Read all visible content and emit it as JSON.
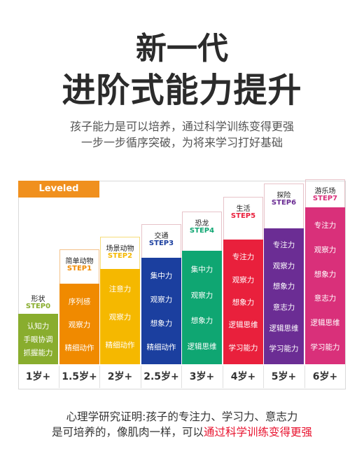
{
  "title_line1": "新一代",
  "title_line2": "进阶式能力提升",
  "subtitle_line1": "孩子能力是可以培养，通过科学训练变得更强",
  "subtitle_line2": "一步一步循序突破，为将来学习打好基础",
  "brand": "Leveled Puzzles",
  "steps": [
    {
      "name": "形状",
      "step": "STEP0",
      "age": "1岁+",
      "color": "#89ad2e",
      "items": [
        "认知力",
        "手眼协调",
        "抓握能力"
      ]
    },
    {
      "name": "简单动物",
      "step": "STEP1",
      "age": "1.5岁+",
      "color": "#f08a00",
      "items": [
        "序列感",
        "观察力",
        "精细动作"
      ]
    },
    {
      "name": "场景动物",
      "step": "STEP2",
      "age": "2岁+",
      "color": "#f5b800",
      "items": [
        "注意力",
        "观察力",
        "精细动作"
      ]
    },
    {
      "name": "交通",
      "step": "STEP3",
      "age": "2.5岁+",
      "color": "#1b3f9f",
      "items": [
        "集中力",
        "观察力",
        "想象力",
        "精细动作"
      ]
    },
    {
      "name": "恐龙",
      "step": "STEP4",
      "age": "3岁+",
      "color": "#0fa672",
      "items": [
        "集中力",
        "观察力",
        "想象力",
        "逻辑思维"
      ]
    },
    {
      "name": "生活",
      "step": "STEP5",
      "age": "4岁+",
      "color": "#e9203c",
      "items": [
        "专注力",
        "观察力",
        "想象力",
        "逻辑思维",
        "学习能力"
      ]
    },
    {
      "name": "探险",
      "step": "STEP6",
      "age": "5岁+",
      "color": "#6b2d94",
      "items": [
        "专注力",
        "观察力",
        "想象力",
        "意志力",
        "逻辑思维",
        "学习能力"
      ]
    },
    {
      "name": "游乐场",
      "step": "STEP7",
      "age": "6岁+",
      "color": "#d9307a",
      "items": [
        "专注力",
        "观察力",
        "想象力",
        "意志力",
        "逻辑思维",
        "学习能力"
      ]
    }
  ],
  "footer_line1": "心理学研究证明:孩子的专注力、学习力、意志力",
  "footer_line2_prefix": "是可培养的，像肌肉一样，可以",
  "footer_line2_highlight": "通过科学训练变得更强"
}
